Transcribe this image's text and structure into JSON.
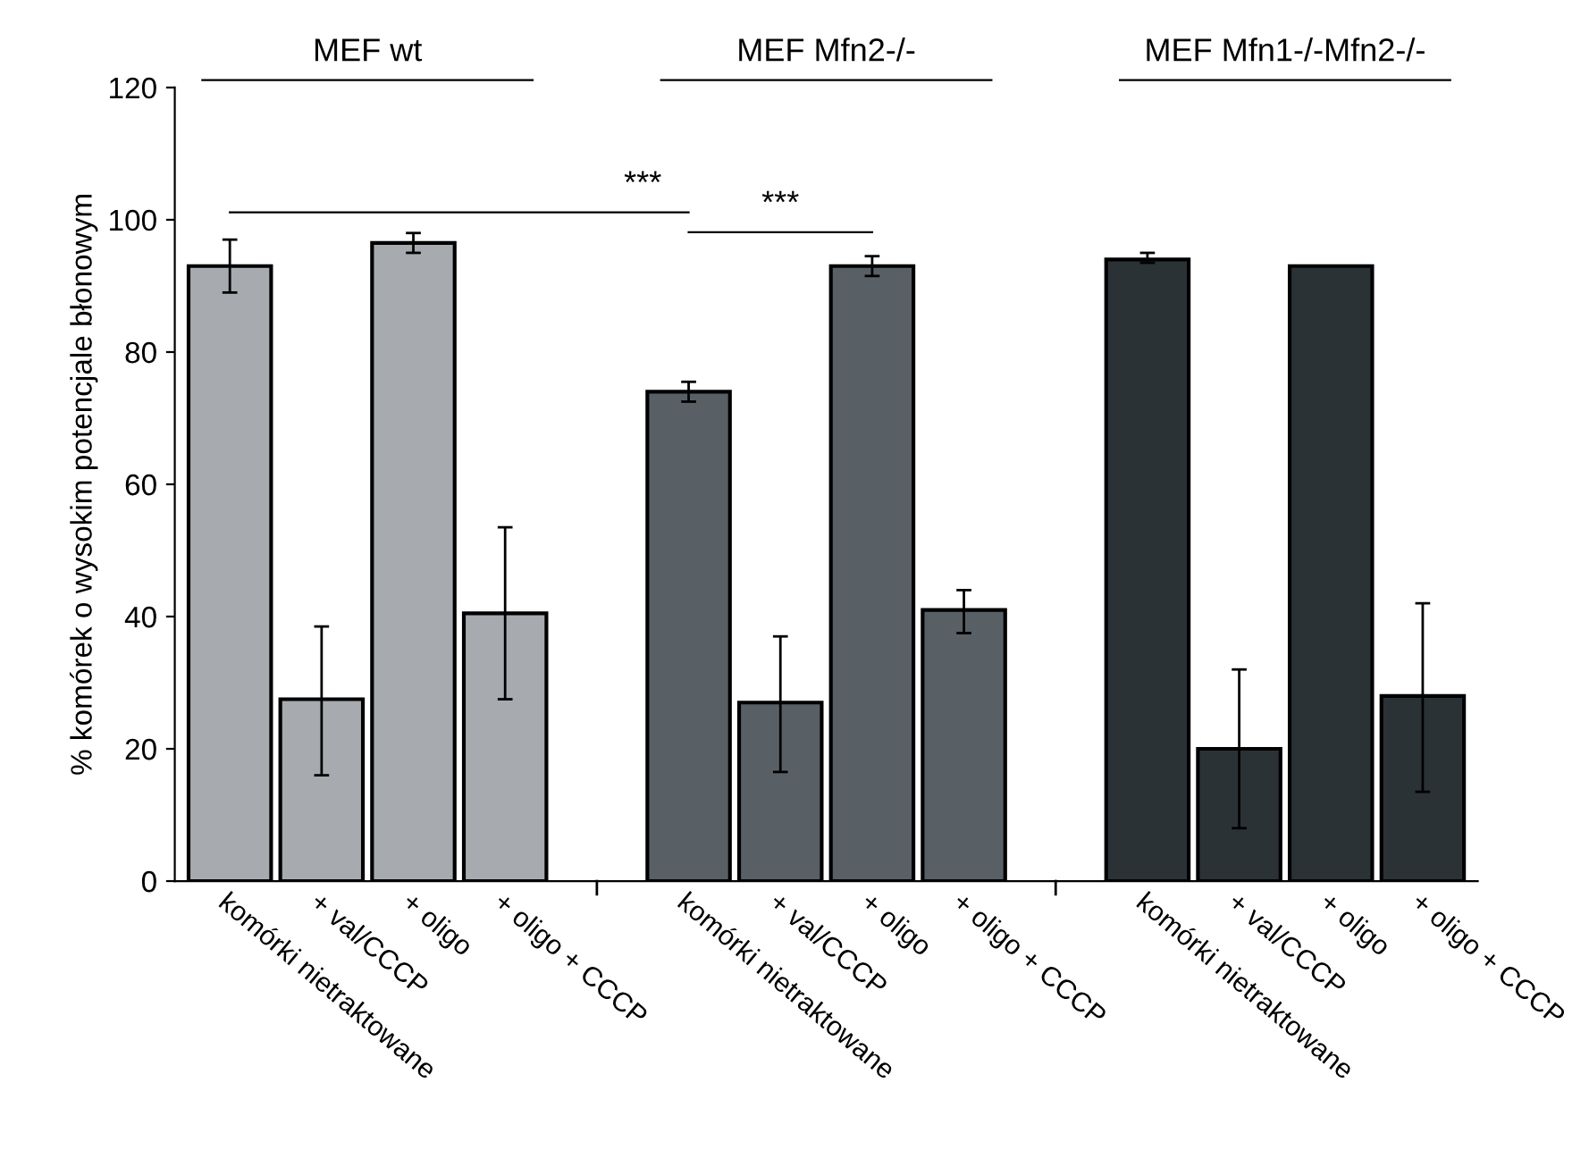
{
  "chart_data": {
    "type": "bar",
    "ylabel": "% komórek o wysokim potencjale błonowym",
    "categories": [
      "komórki nietraktowane",
      "+ val/CCCP",
      "+ oligo",
      "+ oligo + CCCP",
      null,
      "komórki nietraktowane",
      "+ val/CCCP",
      "+ oligo",
      "+ oligo + CCCP",
      null,
      "komórki nietraktowane",
      "+ val/CCCP",
      "+ oligo",
      "+ oligo + CCCP"
    ],
    "values": [
      93,
      27.5,
      96.5,
      40.5,
      null,
      74,
      27,
      93,
      41,
      null,
      94,
      20,
      93,
      28
    ],
    "colors": [
      "#a7aaae",
      "#a7aaae",
      "#a7aaae",
      "#a7aaae",
      null,
      "#596065",
      "#596065",
      "#596065",
      "#596065",
      null,
      "#2b3236",
      "#2b3236",
      "#2b3236",
      "#2b3236"
    ],
    "errors": [
      [
        89,
        97
      ],
      [
        16,
        38.5
      ],
      [
        95,
        98
      ],
      [
        27.5,
        53.5
      ],
      null,
      [
        72.5,
        75.5
      ],
      [
        16.5,
        37
      ],
      [
        91.5,
        94.5
      ],
      [
        37.5,
        44
      ],
      null,
      [
        93.5,
        95
      ],
      [
        8,
        32
      ],
      null,
      [
        13.5,
        42
      ]
    ],
    "ylim": [
      0,
      120
    ],
    "yticks": [
      0,
      20,
      40,
      60,
      80,
      100,
      120
    ],
    "grid": false,
    "annotations": [
      "MEF wt",
      "MEF Mfn2-/-",
      "MEF Mfn1-/-Mfn2-/-",
      "***",
      "***"
    ]
  }
}
